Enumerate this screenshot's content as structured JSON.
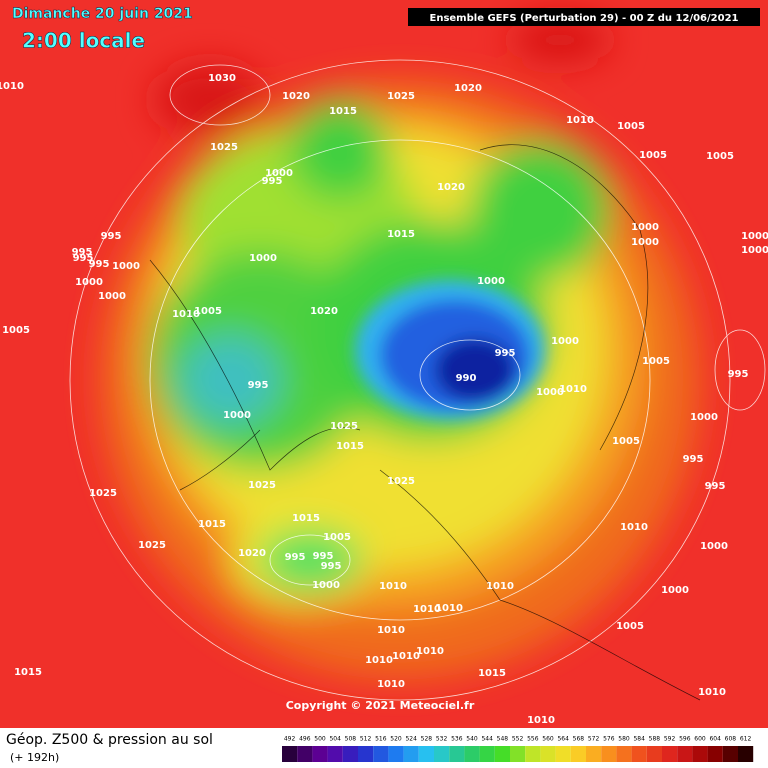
{
  "header": {
    "date": "Dimanche 20 juin 2021",
    "time": "2:00 locale",
    "model": "Ensemble GEFS  (Perturbation 29)  -  00 Z du 12/06/2021"
  },
  "copyright": "Copyright © 2021 Meteociel.fr",
  "legend": {
    "title": "Géop. Z500 & pression au sol",
    "lead": "(+ 192h)",
    "scale": [
      492,
      496,
      500,
      504,
      508,
      512,
      516,
      520,
      524,
      528,
      532,
      536,
      540,
      544,
      548,
      552,
      556,
      560,
      564,
      568,
      572,
      576,
      580,
      584,
      588,
      592,
      596,
      600,
      604,
      608,
      612
    ]
  },
  "isobar_labels": [
    1010,
    1030,
    1020,
    1015,
    1025,
    1020,
    1010,
    1005,
    1005,
    1005,
    1025,
    1000,
    995,
    1020,
    1000,
    1000,
    1000,
    1000,
    995,
    995,
    995,
    995,
    1000,
    1000,
    1015,
    1000,
    1000,
    1000,
    1005,
    1010,
    1005,
    1020,
    1000,
    995,
    1005,
    995,
    990,
    995,
    1000,
    1010,
    1000,
    1000,
    1025,
    1015,
    1005,
    995,
    995,
    1025,
    1025,
    1025,
    1015,
    1015,
    1010,
    1005,
    1025,
    1020,
    995,
    995,
    995,
    1000,
    1000,
    1010,
    1010,
    1000,
    1010,
    1010,
    1005,
    1010,
    1010,
    1010,
    1010,
    1015,
    1015,
    1010,
    1010,
    1010
  ]
}
